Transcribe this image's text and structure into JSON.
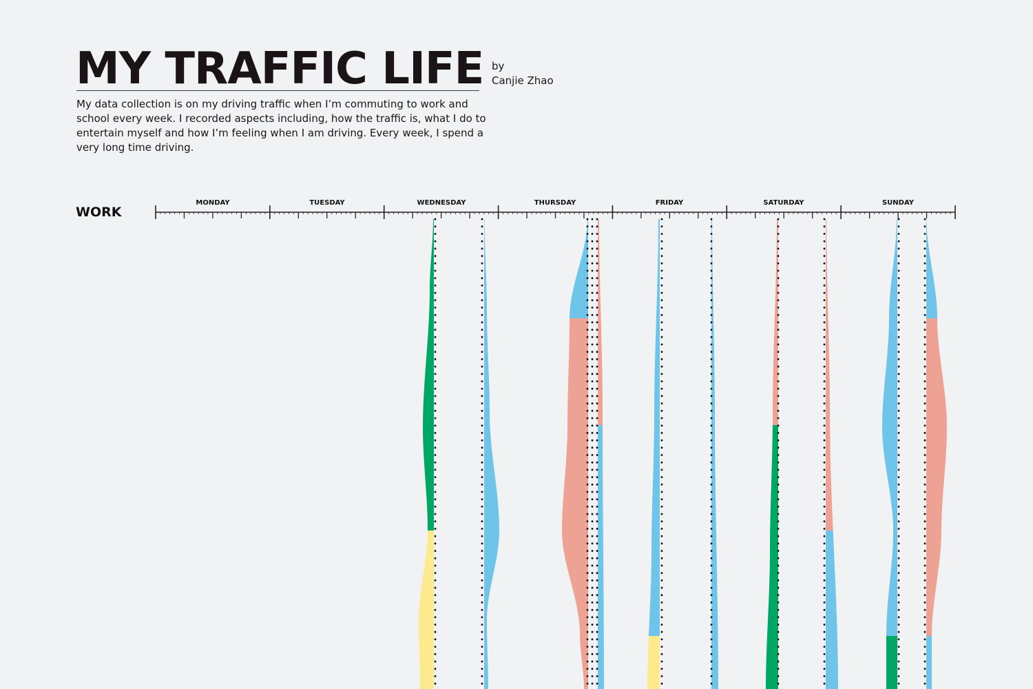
{
  "header": {
    "title": "MY TRAFFIC LIFE",
    "by": "by",
    "author": "Canjie Zhao",
    "description": "My data collection is on my driving traffic when I’m commuting to work and school every week. I recorded aspects including, how the traffic is, what I do to entertain myself and how I’m feeling when I am driving. Every week, I spend a very long time driving."
  },
  "section": {
    "label": "WORK"
  },
  "timeline": {
    "days": [
      "MONDAY",
      "TUESDAY",
      "WEDNESDAY",
      "THURSDAY",
      "FRIDAY",
      "SATURDAY",
      "SUNDAY"
    ]
  },
  "colors": {
    "green": "#00a664",
    "yellow": "#fde98e",
    "blue": "#6fc4ea",
    "salmon": "#eea294",
    "axis": "#231f20",
    "dots": "#111111"
  }
}
